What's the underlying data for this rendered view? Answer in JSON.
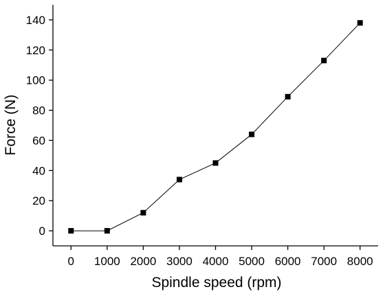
{
  "chart_data": {
    "type": "line",
    "xlabel": "Spindle speed (rpm)",
    "ylabel": "Force (N)",
    "xlim": [
      -500,
      8500
    ],
    "ylim": [
      -10,
      150
    ],
    "xticks": [
      0,
      1000,
      2000,
      3000,
      4000,
      5000,
      6000,
      7000,
      8000
    ],
    "yticks": [
      0,
      20,
      40,
      60,
      80,
      100,
      120,
      140
    ],
    "xtick_labels": [
      "0",
      "1000",
      "2000",
      "3000",
      "4000",
      "5000",
      "6000",
      "7000",
      "8000"
    ],
    "ytick_labels": [
      "0",
      "20",
      "40",
      "60",
      "80",
      "100",
      "120",
      "140"
    ],
    "grid": false,
    "marker": "square",
    "colors": {
      "line": "#000000",
      "marker": "#000000",
      "axis": "#000000"
    },
    "series": [
      {
        "x": [
          0,
          1000,
          2000,
          3000,
          4000,
          5000,
          6000,
          7000,
          8000
        ],
        "y": [
          0,
          0,
          12,
          34,
          45,
          64,
          89,
          113,
          138
        ]
      }
    ]
  }
}
